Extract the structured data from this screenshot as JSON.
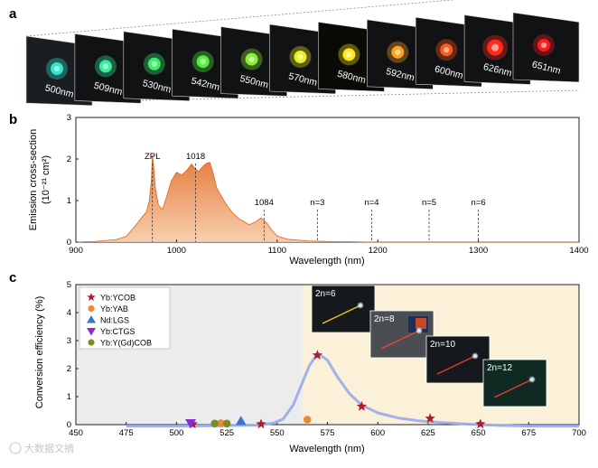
{
  "panel_a": {
    "label": "a",
    "cards": [
      {
        "wavelength": "500nm",
        "color": "#2fe8c8"
      },
      {
        "wavelength": "509nm",
        "color": "#36f0a0"
      },
      {
        "wavelength": "530nm",
        "color": "#3af06a"
      },
      {
        "wavelength": "542nm",
        "color": "#54f040"
      },
      {
        "wavelength": "550nm",
        "color": "#8af034"
      },
      {
        "wavelength": "570nm",
        "color": "#e8f020"
      },
      {
        "wavelength": "580nm",
        "color": "#ffe818"
      },
      {
        "wavelength": "592nm",
        "color": "#ffa020"
      },
      {
        "wavelength": "600nm",
        "color": "#ff5a1e"
      },
      {
        "wavelength": "626nm",
        "color": "#ff2a1a"
      },
      {
        "wavelength": "651nm",
        "color": "#ff1a20"
      }
    ]
  },
  "panel_b": {
    "label": "b",
    "annotations": [
      {
        "text": "ZPL",
        "x": 976
      },
      {
        "text": "1018",
        "x": 1019
      },
      {
        "text": "1084",
        "x": 1087
      },
      {
        "text": "n=3",
        "x": 1140
      },
      {
        "text": "n=4",
        "x": 1194
      },
      {
        "text": "n=5",
        "x": 1251
      },
      {
        "text": "n=6",
        "x": 1300
      }
    ]
  },
  "panel_c": {
    "label": "c",
    "legend": [
      {
        "label": "Yb:YCOB",
        "color": "#b01c2e",
        "marker": "star"
      },
      {
        "label": "Yb:YAB",
        "color": "#e88a3a",
        "marker": "circle"
      },
      {
        "label": "Nd:LGS",
        "color": "#3a76d0",
        "marker": "triangle-up"
      },
      {
        "label": "Yb:CTGS",
        "color": "#8a2bd6",
        "marker": "triangle-down"
      },
      {
        "label": "Yb:Y(Gd)COB",
        "color": "#7d8a2a",
        "marker": "circle"
      }
    ],
    "insets": [
      {
        "label": "2n=6"
      },
      {
        "label": "2n=8"
      },
      {
        "label": "2n=10"
      },
      {
        "label": "2n=12"
      }
    ]
  },
  "watermark": "大数据文摘",
  "chart_data": [
    {
      "type": "area",
      "title": "",
      "xlabel": "Wavelength (nm)",
      "ylabel": "Emission cross-section",
      "ylabel_units": "(10⁻²¹ cm²)",
      "xlim": [
        900,
        1400
      ],
      "ylim": [
        0,
        3
      ],
      "xticks": [
        "900",
        "1000",
        "1100",
        "1200",
        "1300",
        "1400"
      ],
      "yticks": [
        "0",
        "1",
        "2",
        "3"
      ],
      "x": [
        900,
        920,
        940,
        950,
        955,
        960,
        965,
        970,
        973,
        975,
        976,
        977,
        979,
        982,
        986,
        990,
        995,
        1000,
        1005,
        1010,
        1015,
        1018,
        1022,
        1026,
        1030,
        1033,
        1036,
        1040,
        1048,
        1055,
        1062,
        1068,
        1072,
        1078,
        1084,
        1090,
        1095,
        1100,
        1110,
        1130,
        1160,
        1200,
        1250,
        1300,
        1350,
        1400
      ],
      "values": [
        0,
        0.02,
        0.06,
        0.14,
        0.28,
        0.42,
        0.58,
        0.72,
        1.0,
        1.5,
        2.1,
        1.9,
        1.3,
        0.9,
        0.78,
        1.08,
        1.48,
        1.68,
        1.62,
        1.72,
        1.88,
        1.78,
        1.7,
        1.82,
        1.9,
        1.92,
        1.7,
        1.3,
        0.96,
        0.72,
        0.56,
        0.48,
        0.42,
        0.48,
        0.58,
        0.45,
        0.28,
        0.15,
        0.07,
        0.03,
        0.01,
        0,
        0,
        0,
        0,
        0
      ],
      "vlines": [
        976,
        1019,
        1087,
        1140,
        1194,
        1251,
        1300
      ]
    },
    {
      "type": "scatter",
      "title": "",
      "xlabel": "Wavelength (nm)",
      "ylabel": "Conversion efficiency (%)",
      "xlim": [
        450,
        700
      ],
      "ylim": [
        0,
        5
      ],
      "xticks": [
        "450",
        "475",
        "500",
        "525",
        "550",
        "575",
        "600",
        "625",
        "650",
        "675",
        "700"
      ],
      "yticks": [
        "0",
        "1",
        "2",
        "3",
        "4",
        "5"
      ],
      "shaded_regions": [
        {
          "from": 450,
          "to": 563,
          "color": "#ececec"
        },
        {
          "from": 563,
          "to": 700,
          "color": "#fbf0d8"
        }
      ],
      "series": [
        {
          "name": "Yb:YCOB",
          "x": [
            508,
            542,
            570,
            592,
            626,
            651
          ],
          "values": [
            0.02,
            0.02,
            2.48,
            0.65,
            0.22,
            0.02
          ]
        },
        {
          "name": "Yb:YAB",
          "x": [
            522,
            565
          ],
          "values": [
            0.05,
            0.18
          ]
        },
        {
          "name": "Nd:LGS",
          "x": [
            532
          ],
          "values": [
            0.12
          ]
        },
        {
          "name": "Yb:CTGS",
          "x": [
            507
          ],
          "values": [
            0.06
          ]
        },
        {
          "name": "Yb:Y(Gd)COB",
          "x": [
            519,
            525
          ],
          "values": [
            0.04,
            0.04
          ]
        },
        {
          "name": "fit",
          "x": [
            475,
            500,
            520,
            540,
            548,
            553,
            558,
            562,
            566,
            570,
            575,
            580,
            586,
            592,
            600,
            610,
            620,
            630,
            640,
            650,
            660,
            675,
            700
          ],
          "values": [
            -0.05,
            -0.05,
            -0.04,
            -0.02,
            0.05,
            0.2,
            0.7,
            1.4,
            2.1,
            2.55,
            2.3,
            1.7,
            1.1,
            0.7,
            0.42,
            0.24,
            0.14,
            0.08,
            0.04,
            0.0,
            -0.03,
            -0.05,
            -0.05
          ]
        }
      ]
    }
  ]
}
